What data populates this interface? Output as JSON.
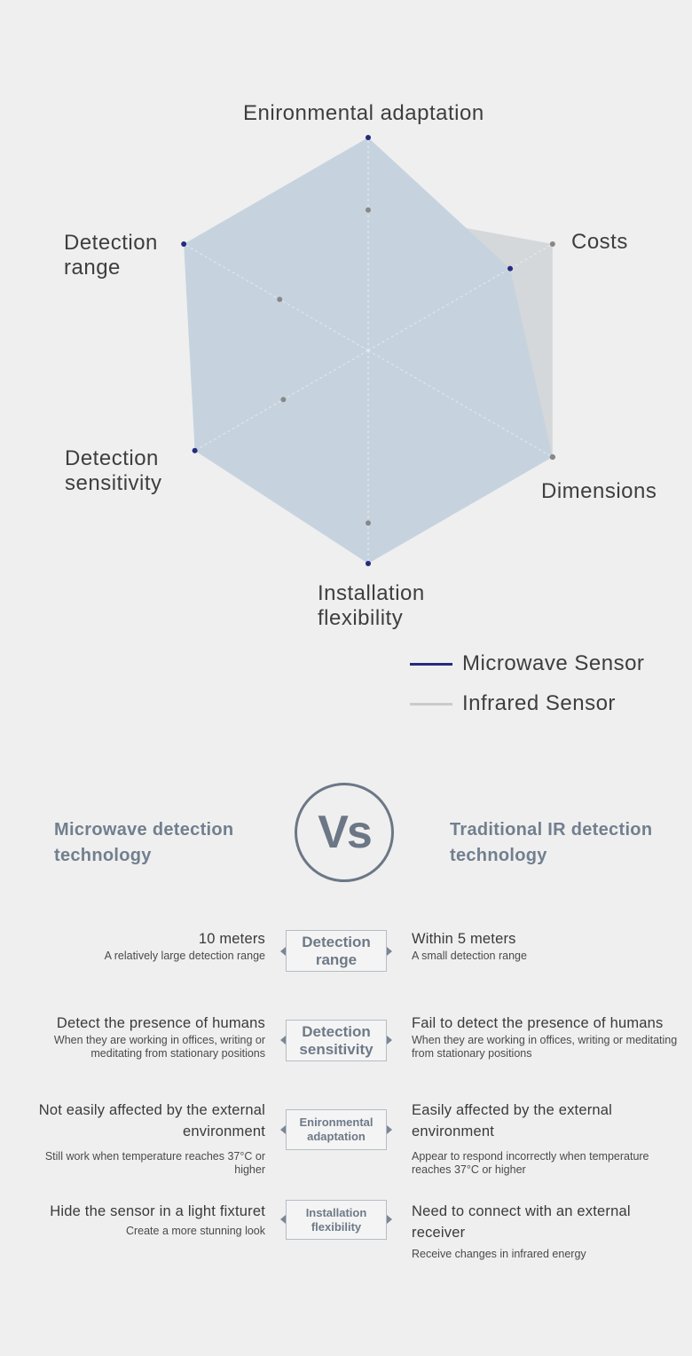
{
  "chart_data": {
    "type": "radar",
    "axes": [
      "Enironmental adaptation",
      "Costs",
      "Dimensions",
      "Installation\nflexibility",
      "Detection\nsensitivity",
      "Detection\nrange"
    ],
    "max": 10,
    "series": [
      {
        "name": "Microwave Sensor",
        "values": [
          10,
          7.7,
          10,
          10,
          9.4,
          10
        ],
        "color": "#262b7e",
        "fill": "#c6d3df"
      },
      {
        "name": "Infrared Sensor",
        "values": [
          6.6,
          10,
          10,
          8.1,
          4.6,
          4.8
        ],
        "color": "#c9c9c9",
        "fill": "#c0c4c9"
      }
    ],
    "legend": "bottom-right",
    "grid": true
  },
  "comparison": {
    "left_title": "Microwave detection technology",
    "right_title": "Traditional IR detection technology",
    "vs": "Vs",
    "rows": [
      {
        "category": "Detection range",
        "left_main": "10 meters",
        "left_sub": "A relatively large detection range",
        "right_main": "Within 5 meters",
        "right_sub": "A small detection range"
      },
      {
        "category": "Detection sensitivity",
        "left_main": "Detect the presence of humans",
        "left_sub": "When they are working in offices, writing or meditating from stationary positions",
        "right_main": "Fail to detect the presence of humans",
        "right_sub": "When they are working in offices, writing or meditating from stationary positions"
      },
      {
        "category": "Enironmental adaptation",
        "left_main": "Not easily affected by the external environment",
        "left_sub": "Still work when temperature reaches 37°C or higher",
        "right_main": "Easily affected by the external environment",
        "right_sub": "Appear to respond incorrectly when temperature reaches 37°C or higher"
      },
      {
        "category": "Installation flexibility",
        "left_main": "Hide the sensor in a light fixturet",
        "left_sub": "Create a more stunning look",
        "right_main": "Need to connect with an external receiver",
        "right_sub": "Receive changes in infrared energy"
      }
    ]
  }
}
